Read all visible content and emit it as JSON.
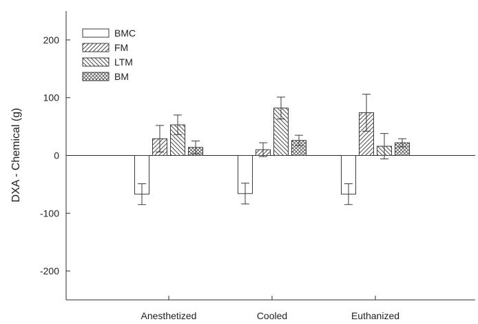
{
  "chart_data": {
    "type": "bar",
    "title": "",
    "xlabel": "",
    "ylabel": "DXA - Chemical (g)",
    "ylim": [
      -250,
      250
    ],
    "yticks": [
      -200,
      -100,
      0,
      100,
      200
    ],
    "categories": [
      "Anesthetized",
      "Cooled",
      "Euthanized"
    ],
    "legend_position": "top-left",
    "grid": false,
    "series": [
      {
        "name": "BMC",
        "pattern": "solid",
        "values": [
          -67,
          -66,
          -67
        ],
        "errors": [
          18,
          18,
          18
        ]
      },
      {
        "name": "FM",
        "pattern": "diagonal",
        "values": [
          29,
          10,
          74
        ],
        "errors": [
          23,
          12,
          32
        ]
      },
      {
        "name": "LTM",
        "pattern": "backdiagonal",
        "values": [
          53,
          82,
          16
        ],
        "errors": [
          17,
          19,
          22
        ]
      },
      {
        "name": "BM",
        "pattern": "crosshatch",
        "values": [
          14,
          26,
          22
        ],
        "errors": [
          11,
          9,
          7
        ]
      }
    ],
    "colors": {
      "axis": "#2b2b2b",
      "bar_edge": "#3a3a3a",
      "bar_fill": "#ffffff",
      "hatch": "#4a4a4a"
    }
  }
}
